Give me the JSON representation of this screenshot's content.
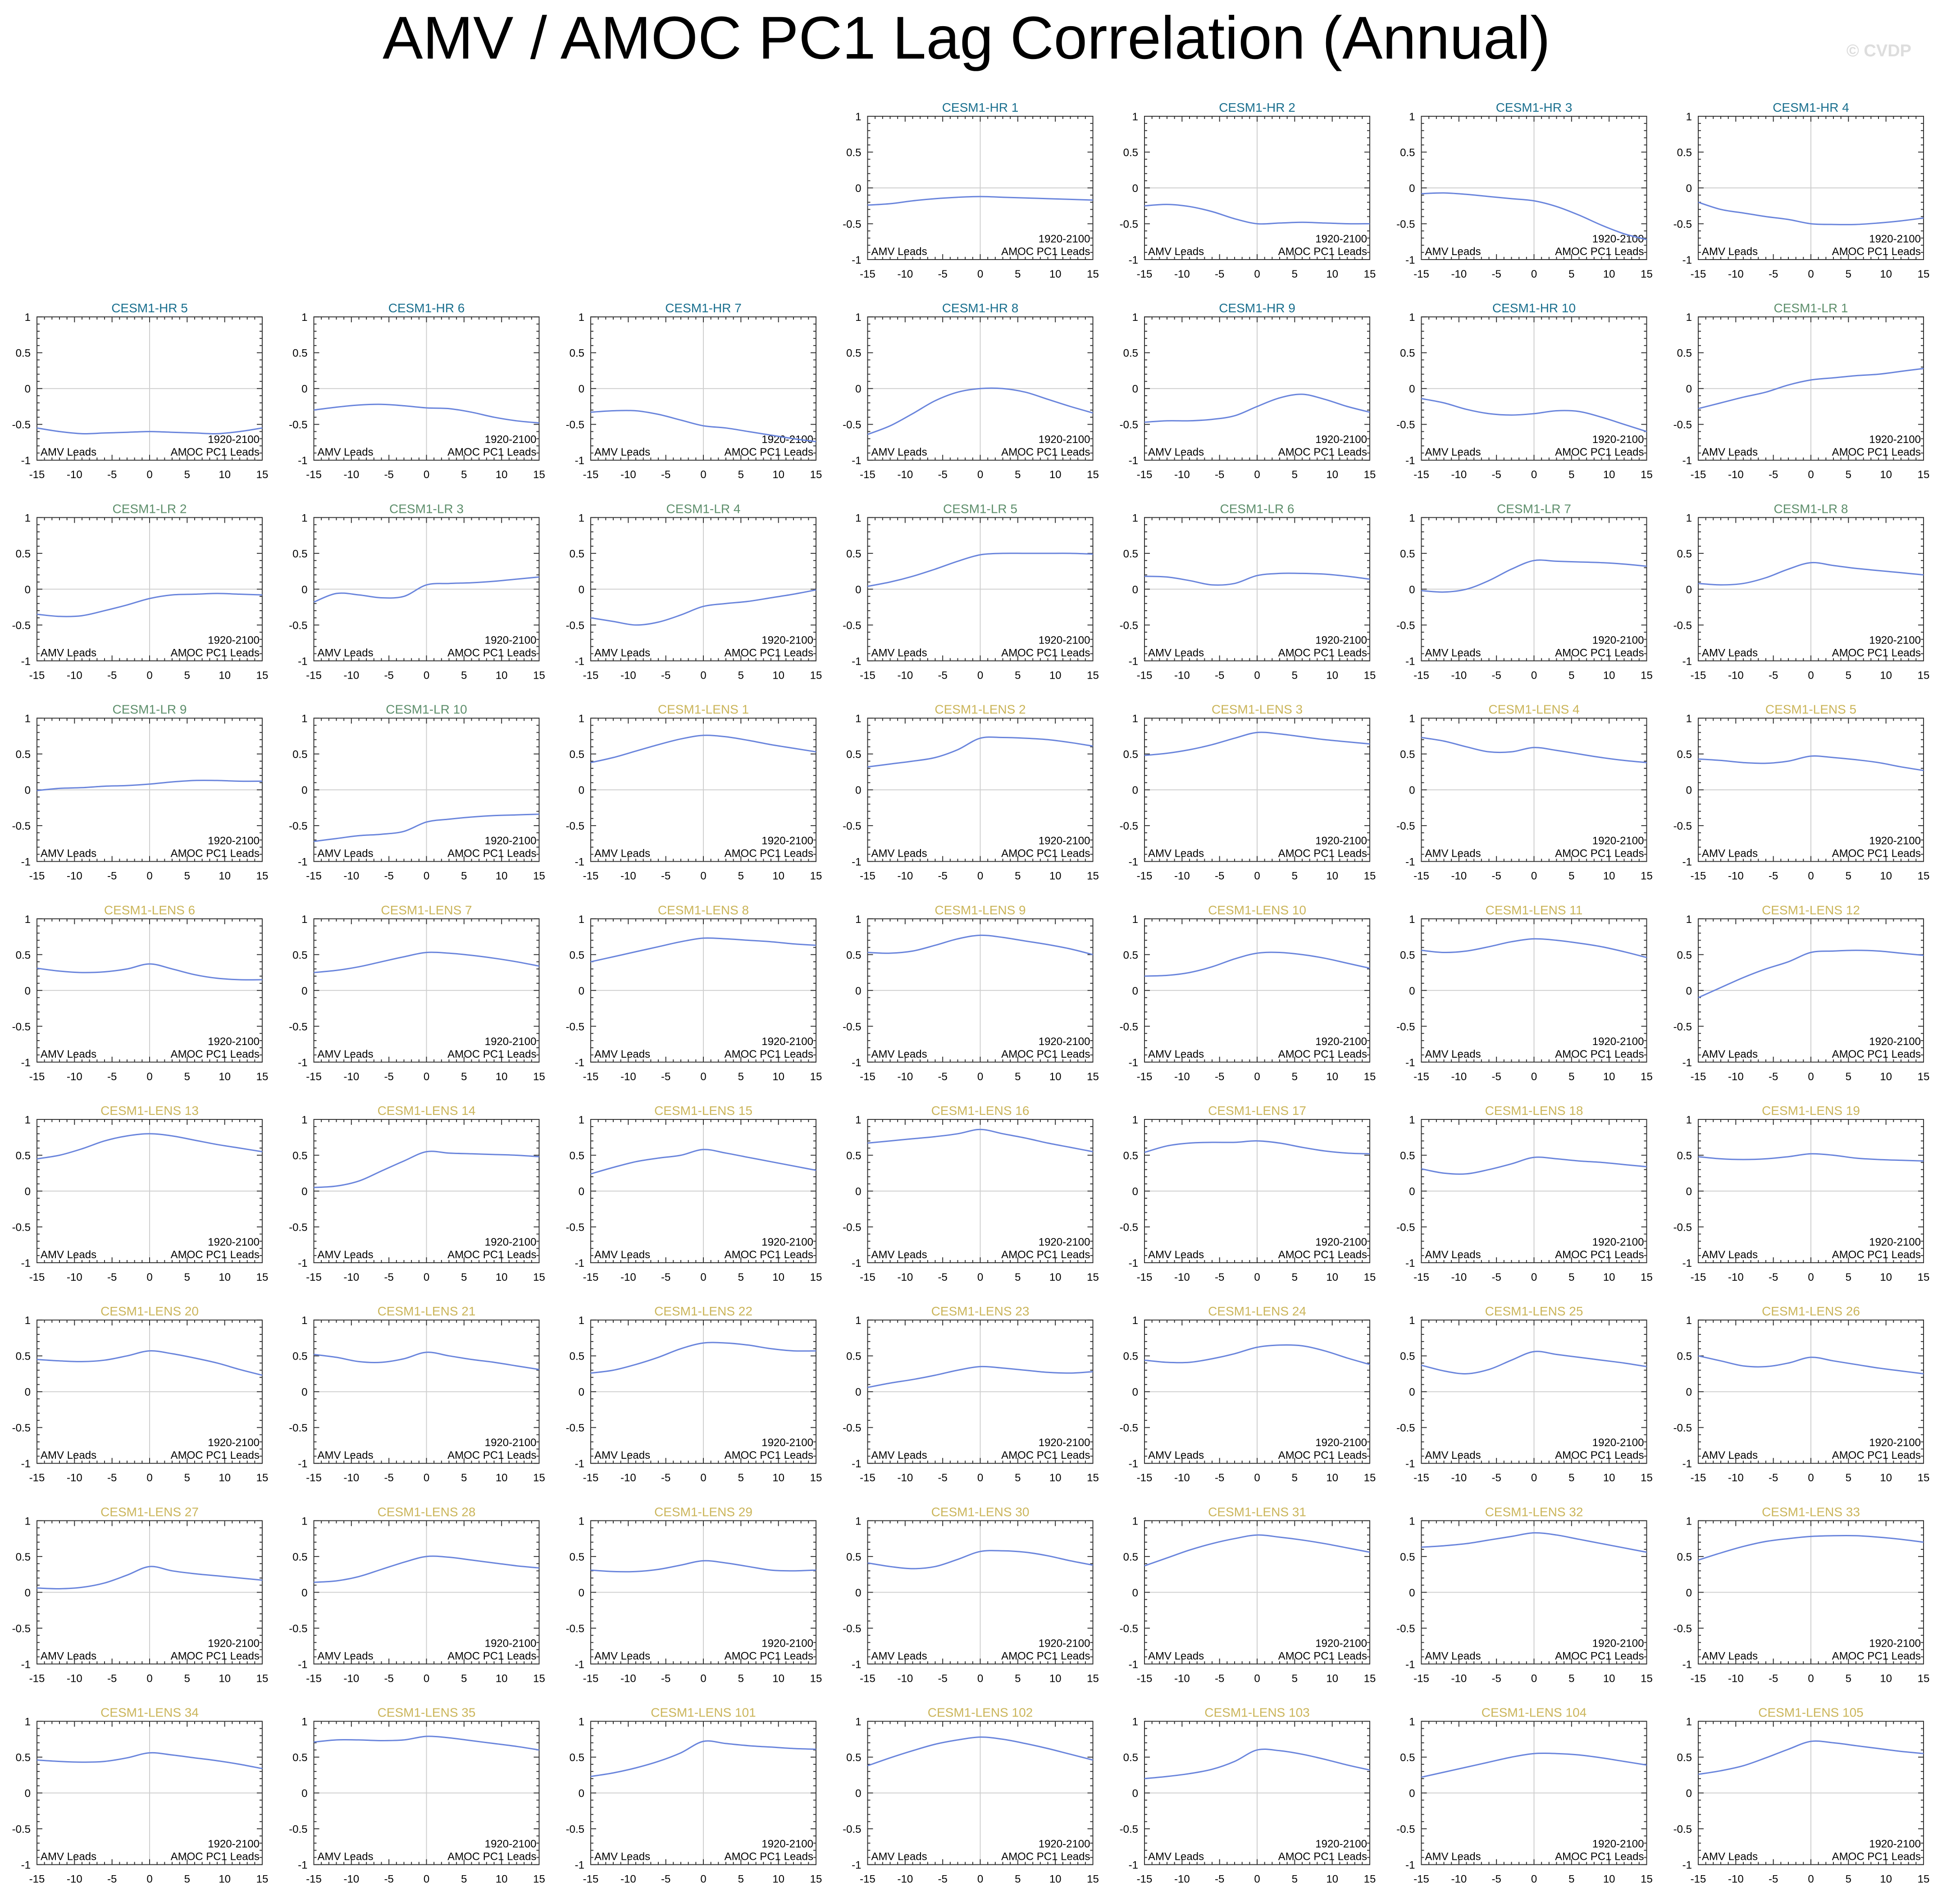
{
  "figure": {
    "title": "AMV / AMOC PC1 Lag Correlation (Annual)",
    "watermark": "© CVDP",
    "period_label": "1920-2100",
    "left_corner_label": "AMV Leads",
    "right_corner_label": "AMOC PC1 Leads",
    "line_color": "#6a85dc",
    "title_colors": {
      "CESM1-HR": "#1a6f8e",
      "CESM1-LR": "#5e8f6c",
      "CESM1-LENS": "#cbb55a"
    }
  },
  "chart_data": {
    "type": "line",
    "x": [
      -15,
      -12,
      -9,
      -6,
      -3,
      0,
      3,
      6,
      9,
      12,
      15
    ],
    "xlim": [
      -15,
      15
    ],
    "ylim": [
      -1,
      1
    ],
    "xticks": [
      -15,
      -10,
      -5,
      0,
      5,
      10,
      15
    ],
    "yticks": [
      1,
      0.5,
      0,
      -0.5,
      -1
    ],
    "xtick_labels": [
      "-15",
      "-10",
      "-5",
      "0",
      "5",
      "10",
      "15"
    ],
    "ytick_labels": [
      "1",
      "0.5",
      "0",
      "-0.5",
      "-1"
    ],
    "grid": "zero lines",
    "panels": [
      {
        "title": "CESM1-HR 1",
        "group": "CESM1-HR",
        "y": [
          -0.24,
          -0.22,
          -0.18,
          -0.15,
          -0.13,
          -0.12,
          -0.13,
          -0.14,
          -0.15,
          -0.16,
          -0.17
        ]
      },
      {
        "title": "CESM1-HR 2",
        "group": "CESM1-HR",
        "y": [
          -0.25,
          -0.23,
          -0.26,
          -0.33,
          -0.43,
          -0.5,
          -0.49,
          -0.48,
          -0.49,
          -0.5,
          -0.5
        ]
      },
      {
        "title": "CESM1-HR 3",
        "group": "CESM1-HR",
        "y": [
          -0.08,
          -0.07,
          -0.09,
          -0.12,
          -0.15,
          -0.18,
          -0.26,
          -0.38,
          -0.52,
          -0.64,
          -0.72
        ]
      },
      {
        "title": "CESM1-HR 4",
        "group": "CESM1-HR",
        "y": [
          -0.2,
          -0.3,
          -0.35,
          -0.4,
          -0.44,
          -0.5,
          -0.51,
          -0.51,
          -0.49,
          -0.46,
          -0.42
        ]
      },
      {
        "title": "CESM1-HR 5",
        "group": "CESM1-HR",
        "y": [
          -0.55,
          -0.6,
          -0.63,
          -0.62,
          -0.61,
          -0.6,
          -0.61,
          -0.62,
          -0.63,
          -0.6,
          -0.55
        ]
      },
      {
        "title": "CESM1-HR 6",
        "group": "CESM1-HR",
        "y": [
          -0.3,
          -0.26,
          -0.23,
          -0.22,
          -0.24,
          -0.27,
          -0.28,
          -0.33,
          -0.4,
          -0.45,
          -0.48
        ]
      },
      {
        "title": "CESM1-HR 7",
        "group": "CESM1-HR",
        "y": [
          -0.33,
          -0.31,
          -0.31,
          -0.36,
          -0.44,
          -0.52,
          -0.55,
          -0.6,
          -0.65,
          -0.7,
          -0.74
        ]
      },
      {
        "title": "CESM1-HR 8",
        "group": "CESM1-HR",
        "y": [
          -0.64,
          -0.52,
          -0.35,
          -0.17,
          -0.05,
          0.0,
          0.0,
          -0.05,
          -0.15,
          -0.25,
          -0.34
        ]
      },
      {
        "title": "CESM1-HR 9",
        "group": "CESM1-HR",
        "y": [
          -0.47,
          -0.45,
          -0.45,
          -0.43,
          -0.38,
          -0.25,
          -0.13,
          -0.08,
          -0.15,
          -0.25,
          -0.33
        ]
      },
      {
        "title": "CESM1-HR 10",
        "group": "CESM1-HR",
        "y": [
          -0.14,
          -0.2,
          -0.29,
          -0.35,
          -0.37,
          -0.35,
          -0.31,
          -0.32,
          -0.4,
          -0.5,
          -0.6
        ]
      },
      {
        "title": "CESM1-LR 1",
        "group": "CESM1-LR",
        "y": [
          -0.28,
          -0.2,
          -0.12,
          -0.05,
          0.05,
          0.12,
          0.15,
          0.18,
          0.2,
          0.24,
          0.28
        ]
      },
      {
        "title": "CESM1-LR 2",
        "group": "CESM1-LR",
        "y": [
          -0.35,
          -0.38,
          -0.37,
          -0.3,
          -0.22,
          -0.13,
          -0.08,
          -0.07,
          -0.06,
          -0.07,
          -0.08
        ]
      },
      {
        "title": "CESM1-LR 3",
        "group": "CESM1-LR",
        "y": [
          -0.18,
          -0.06,
          -0.08,
          -0.12,
          -0.1,
          0.06,
          0.08,
          0.09,
          0.11,
          0.14,
          0.17
        ]
      },
      {
        "title": "CESM1-LR 4",
        "group": "CESM1-LR",
        "y": [
          -0.4,
          -0.45,
          -0.5,
          -0.46,
          -0.36,
          -0.24,
          -0.2,
          -0.17,
          -0.12,
          -0.07,
          -0.01
        ]
      },
      {
        "title": "CESM1-LR 5",
        "group": "CESM1-LR",
        "y": [
          0.04,
          0.1,
          0.18,
          0.28,
          0.39,
          0.48,
          0.5,
          0.5,
          0.5,
          0.5,
          0.49
        ]
      },
      {
        "title": "CESM1-LR 6",
        "group": "CESM1-LR",
        "y": [
          0.18,
          0.17,
          0.12,
          0.06,
          0.08,
          0.19,
          0.22,
          0.22,
          0.21,
          0.18,
          0.14
        ]
      },
      {
        "title": "CESM1-LR 7",
        "group": "CESM1-LR",
        "y": [
          -0.02,
          -0.04,
          0.0,
          0.12,
          0.28,
          0.4,
          0.39,
          0.38,
          0.37,
          0.35,
          0.32
        ]
      },
      {
        "title": "CESM1-LR 8",
        "group": "CESM1-LR",
        "y": [
          0.08,
          0.06,
          0.08,
          0.16,
          0.28,
          0.37,
          0.33,
          0.29,
          0.26,
          0.23,
          0.2
        ]
      },
      {
        "title": "CESM1-LR 9",
        "group": "CESM1-LR",
        "y": [
          -0.01,
          0.02,
          0.03,
          0.05,
          0.06,
          0.08,
          0.11,
          0.13,
          0.13,
          0.12,
          0.12
        ]
      },
      {
        "title": "CESM1-LR 10",
        "group": "CESM1-LR",
        "y": [
          -0.72,
          -0.68,
          -0.64,
          -0.62,
          -0.58,
          -0.45,
          -0.41,
          -0.38,
          -0.36,
          -0.35,
          -0.34
        ]
      },
      {
        "title": "CESM1-LENS 1",
        "group": "CESM1-LENS",
        "y": [
          0.38,
          0.45,
          0.54,
          0.63,
          0.71,
          0.76,
          0.74,
          0.69,
          0.63,
          0.58,
          0.53
        ]
      },
      {
        "title": "CESM1-LENS 2",
        "group": "CESM1-LENS",
        "y": [
          0.32,
          0.36,
          0.4,
          0.45,
          0.56,
          0.72,
          0.73,
          0.72,
          0.7,
          0.66,
          0.61
        ]
      },
      {
        "title": "CESM1-LENS 3",
        "group": "CESM1-LENS",
        "y": [
          0.48,
          0.51,
          0.56,
          0.63,
          0.72,
          0.8,
          0.78,
          0.74,
          0.7,
          0.67,
          0.64
        ]
      },
      {
        "title": "CESM1-LENS 4",
        "group": "CESM1-LENS",
        "y": [
          0.73,
          0.68,
          0.6,
          0.53,
          0.53,
          0.59,
          0.55,
          0.5,
          0.45,
          0.41,
          0.38
        ]
      },
      {
        "title": "CESM1-LENS 5",
        "group": "CESM1-LENS",
        "y": [
          0.43,
          0.41,
          0.38,
          0.37,
          0.4,
          0.47,
          0.45,
          0.42,
          0.38,
          0.32,
          0.27
        ]
      },
      {
        "title": "CESM1-LENS 6",
        "group": "CESM1-LENS",
        "y": [
          0.31,
          0.27,
          0.25,
          0.26,
          0.3,
          0.37,
          0.3,
          0.22,
          0.17,
          0.15,
          0.15
        ]
      },
      {
        "title": "CESM1-LENS 7",
        "group": "CESM1-LENS",
        "y": [
          0.25,
          0.28,
          0.33,
          0.4,
          0.47,
          0.53,
          0.52,
          0.49,
          0.45,
          0.4,
          0.34
        ]
      },
      {
        "title": "CESM1-LENS 8",
        "group": "CESM1-LENS",
        "y": [
          0.4,
          0.47,
          0.54,
          0.61,
          0.68,
          0.73,
          0.72,
          0.7,
          0.68,
          0.65,
          0.63
        ]
      },
      {
        "title": "CESM1-LENS 9",
        "group": "CESM1-LENS",
        "y": [
          0.53,
          0.52,
          0.55,
          0.63,
          0.72,
          0.77,
          0.74,
          0.69,
          0.64,
          0.58,
          0.5
        ]
      },
      {
        "title": "CESM1-LENS 10",
        "group": "CESM1-LENS",
        "y": [
          0.2,
          0.21,
          0.25,
          0.33,
          0.44,
          0.52,
          0.53,
          0.5,
          0.45,
          0.38,
          0.31
        ]
      },
      {
        "title": "CESM1-LENS 11",
        "group": "CESM1-LENS",
        "y": [
          0.56,
          0.53,
          0.55,
          0.61,
          0.68,
          0.72,
          0.7,
          0.66,
          0.61,
          0.54,
          0.46
        ]
      },
      {
        "title": "CESM1-LENS 12",
        "group": "CESM1-LENS",
        "y": [
          -0.1,
          0.04,
          0.18,
          0.3,
          0.4,
          0.53,
          0.55,
          0.56,
          0.55,
          0.52,
          0.49
        ]
      },
      {
        "title": "CESM1-LENS 13",
        "group": "CESM1-LENS",
        "y": [
          0.45,
          0.5,
          0.59,
          0.7,
          0.77,
          0.8,
          0.77,
          0.71,
          0.65,
          0.6,
          0.55
        ]
      },
      {
        "title": "CESM1-LENS 14",
        "group": "CESM1-LENS",
        "y": [
          0.05,
          0.07,
          0.14,
          0.28,
          0.42,
          0.55,
          0.53,
          0.52,
          0.51,
          0.5,
          0.48
        ]
      },
      {
        "title": "CESM1-LENS 15",
        "group": "CESM1-LENS",
        "y": [
          0.24,
          0.33,
          0.41,
          0.46,
          0.5,
          0.58,
          0.53,
          0.47,
          0.41,
          0.35,
          0.29
        ]
      },
      {
        "title": "CESM1-LENS 16",
        "group": "CESM1-LENS",
        "y": [
          0.67,
          0.7,
          0.73,
          0.76,
          0.8,
          0.86,
          0.8,
          0.74,
          0.67,
          0.61,
          0.55
        ]
      },
      {
        "title": "CESM1-LENS 17",
        "group": "CESM1-LENS",
        "y": [
          0.54,
          0.63,
          0.67,
          0.68,
          0.68,
          0.7,
          0.67,
          0.61,
          0.56,
          0.53,
          0.52
        ]
      },
      {
        "title": "CESM1-LENS 18",
        "group": "CESM1-LENS",
        "y": [
          0.31,
          0.25,
          0.24,
          0.3,
          0.38,
          0.47,
          0.45,
          0.42,
          0.4,
          0.37,
          0.34
        ]
      },
      {
        "title": "CESM1-LENS 19",
        "group": "CESM1-LENS",
        "y": [
          0.48,
          0.45,
          0.44,
          0.45,
          0.48,
          0.52,
          0.5,
          0.46,
          0.44,
          0.43,
          0.42
        ]
      },
      {
        "title": "CESM1-LENS 20",
        "group": "CESM1-LENS",
        "y": [
          0.45,
          0.43,
          0.42,
          0.44,
          0.5,
          0.57,
          0.53,
          0.47,
          0.4,
          0.31,
          0.23
        ]
      },
      {
        "title": "CESM1-LENS 21",
        "group": "CESM1-LENS",
        "y": [
          0.52,
          0.48,
          0.42,
          0.41,
          0.46,
          0.55,
          0.5,
          0.45,
          0.41,
          0.36,
          0.31
        ]
      },
      {
        "title": "CESM1-LENS 22",
        "group": "CESM1-LENS",
        "y": [
          0.26,
          0.3,
          0.38,
          0.48,
          0.6,
          0.68,
          0.68,
          0.65,
          0.6,
          0.57,
          0.57
        ]
      },
      {
        "title": "CESM1-LENS 23",
        "group": "CESM1-LENS",
        "y": [
          0.06,
          0.12,
          0.17,
          0.23,
          0.3,
          0.35,
          0.33,
          0.3,
          0.27,
          0.26,
          0.28
        ]
      },
      {
        "title": "CESM1-LENS 24",
        "group": "CESM1-LENS",
        "y": [
          0.44,
          0.41,
          0.41,
          0.46,
          0.53,
          0.62,
          0.65,
          0.64,
          0.57,
          0.47,
          0.38
        ]
      },
      {
        "title": "CESM1-LENS 25",
        "group": "CESM1-LENS",
        "y": [
          0.37,
          0.29,
          0.25,
          0.31,
          0.44,
          0.56,
          0.52,
          0.48,
          0.44,
          0.4,
          0.35
        ]
      },
      {
        "title": "CESM1-LENS 26",
        "group": "CESM1-LENS",
        "y": [
          0.5,
          0.43,
          0.36,
          0.35,
          0.4,
          0.48,
          0.43,
          0.38,
          0.33,
          0.29,
          0.25
        ]
      },
      {
        "title": "CESM1-LENS 27",
        "group": "CESM1-LENS",
        "y": [
          0.06,
          0.05,
          0.07,
          0.13,
          0.24,
          0.36,
          0.3,
          0.26,
          0.23,
          0.2,
          0.17
        ]
      },
      {
        "title": "CESM1-LENS 28",
        "group": "CESM1-LENS",
        "y": [
          0.14,
          0.16,
          0.22,
          0.32,
          0.42,
          0.5,
          0.49,
          0.45,
          0.41,
          0.37,
          0.34
        ]
      },
      {
        "title": "CESM1-LENS 29",
        "group": "CESM1-LENS",
        "y": [
          0.31,
          0.29,
          0.29,
          0.32,
          0.38,
          0.44,
          0.41,
          0.36,
          0.31,
          0.3,
          0.31
        ]
      },
      {
        "title": "CESM1-LENS 30",
        "group": "CESM1-LENS",
        "y": [
          0.41,
          0.36,
          0.33,
          0.36,
          0.46,
          0.57,
          0.58,
          0.56,
          0.51,
          0.44,
          0.38
        ]
      },
      {
        "title": "CESM1-LENS 31",
        "group": "CESM1-LENS",
        "y": [
          0.37,
          0.48,
          0.59,
          0.68,
          0.75,
          0.8,
          0.77,
          0.73,
          0.68,
          0.62,
          0.56
        ]
      },
      {
        "title": "CESM1-LENS 32",
        "group": "CESM1-LENS",
        "y": [
          0.63,
          0.65,
          0.68,
          0.73,
          0.78,
          0.83,
          0.8,
          0.74,
          0.68,
          0.62,
          0.56
        ]
      },
      {
        "title": "CESM1-LENS 33",
        "group": "CESM1-LENS",
        "y": [
          0.45,
          0.55,
          0.64,
          0.71,
          0.75,
          0.78,
          0.79,
          0.79,
          0.77,
          0.74,
          0.7
        ]
      },
      {
        "title": "CESM1-LENS 34",
        "group": "CESM1-LENS",
        "y": [
          0.46,
          0.44,
          0.43,
          0.44,
          0.49,
          0.56,
          0.53,
          0.49,
          0.45,
          0.4,
          0.34
        ]
      },
      {
        "title": "CESM1-LENS 35",
        "group": "CESM1-LENS",
        "y": [
          0.71,
          0.74,
          0.74,
          0.73,
          0.74,
          0.79,
          0.77,
          0.73,
          0.69,
          0.65,
          0.6
        ]
      },
      {
        "title": "CESM1-LENS 101",
        "group": "CESM1-LENS",
        "y": [
          0.23,
          0.28,
          0.35,
          0.44,
          0.56,
          0.72,
          0.69,
          0.66,
          0.64,
          0.62,
          0.61
        ]
      },
      {
        "title": "CESM1-LENS 102",
        "group": "CESM1-LENS",
        "y": [
          0.38,
          0.49,
          0.59,
          0.68,
          0.74,
          0.78,
          0.75,
          0.69,
          0.62,
          0.54,
          0.46
        ]
      },
      {
        "title": "CESM1-LENS 103",
        "group": "CESM1-LENS",
        "y": [
          0.2,
          0.23,
          0.27,
          0.33,
          0.44,
          0.6,
          0.59,
          0.54,
          0.47,
          0.39,
          0.32
        ]
      },
      {
        "title": "CESM1-LENS 104",
        "group": "CESM1-LENS",
        "y": [
          0.22,
          0.29,
          0.36,
          0.43,
          0.5,
          0.55,
          0.55,
          0.53,
          0.49,
          0.44,
          0.39
        ]
      },
      {
        "title": "CESM1-LENS 105",
        "group": "CESM1-LENS",
        "y": [
          0.26,
          0.31,
          0.38,
          0.49,
          0.61,
          0.72,
          0.7,
          0.66,
          0.62,
          0.58,
          0.55
        ]
      }
    ]
  }
}
